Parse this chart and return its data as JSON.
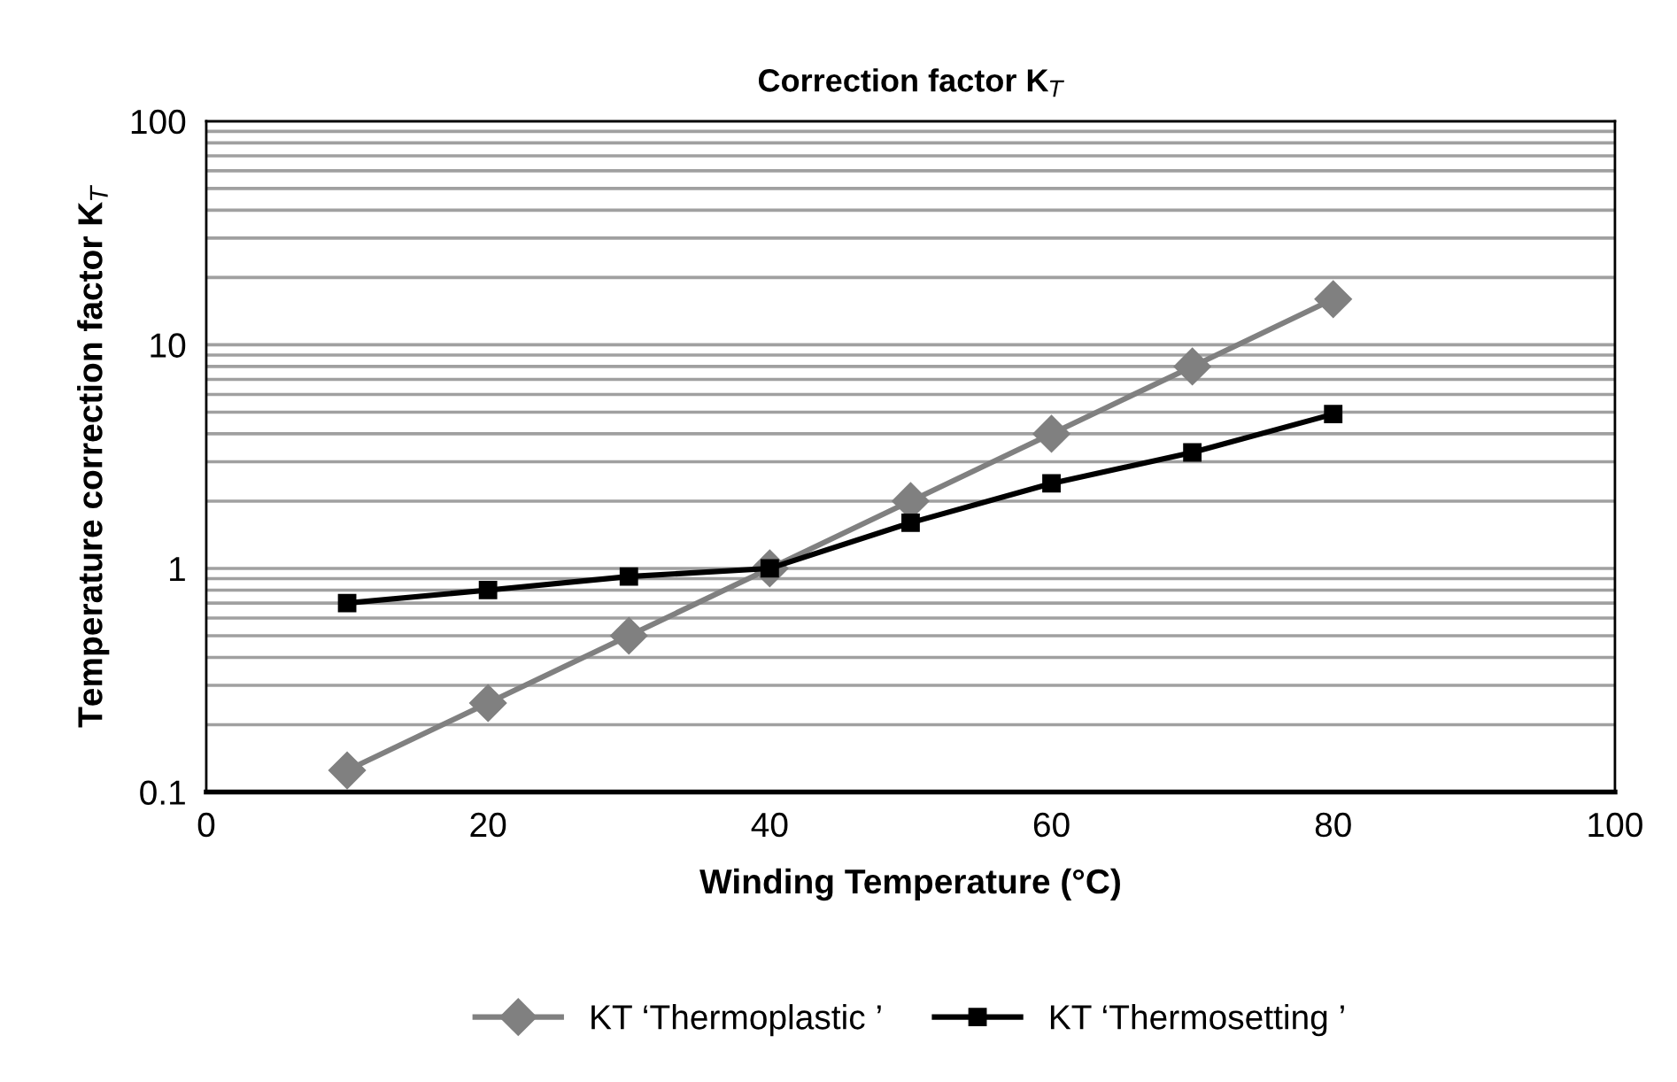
{
  "chart_data": {
    "type": "line",
    "title": "Correction factor K$_{T}$",
    "xlabel": "Winding Temperature (°C)",
    "ylabel": "Temperature correction factor K$_{T}$",
    "log": "y",
    "grid": "y",
    "legend": "bottom",
    "line_style": "solid",
    "xlim": [
      0,
      100
    ],
    "xticks": [
      0,
      20,
      40,
      60,
      80,
      100
    ],
    "ylim": [
      0.1,
      100
    ],
    "yticks": [
      0.1,
      {
        "value": 0.2,
        "label": null
      },
      {
        "value": 0.3,
        "label": null
      },
      {
        "value": 0.4,
        "label": null
      },
      {
        "value": 0.5,
        "label": null
      },
      {
        "value": 0.6,
        "label": null
      },
      {
        "value": 0.7,
        "label": null
      },
      {
        "value": 0.8,
        "label": null
      },
      {
        "value": 0.9,
        "label": null
      },
      1,
      {
        "value": 2,
        "label": null
      },
      {
        "value": 3,
        "label": null
      },
      {
        "value": 4,
        "label": null
      },
      {
        "value": 5,
        "label": null
      },
      {
        "value": 6,
        "label": null
      },
      {
        "value": 7,
        "label": null
      },
      {
        "value": 8,
        "label": null
      },
      {
        "value": 9,
        "label": null
      },
      10,
      {
        "value": 20,
        "label": null
      },
      {
        "value": 30,
        "label": null
      },
      {
        "value": 40,
        "label": null
      },
      {
        "value": 50,
        "label": null
      },
      {
        "value": 60,
        "label": null
      },
      {
        "value": 70,
        "label": null
      },
      {
        "value": 80,
        "label": null
      },
      {
        "value": 90,
        "label": null
      },
      100
    ],
    "x": [
      10,
      20,
      30,
      40,
      50,
      60,
      70,
      80
    ],
    "series": [
      {
        "name": "KT ‘Thermoplastic ’",
        "color": "#808080",
        "marker": "diamond",
        "values": [
          0.125,
          0.25,
          0.5,
          1,
          2,
          4,
          8,
          16
        ]
      },
      {
        "name": "KT ‘Thermosetting ’",
        "color": "#000000",
        "marker": "square",
        "values": [
          0.7,
          0.8,
          0.92,
          1.0,
          1.6,
          2.4,
          3.3,
          4.9
        ]
      }
    ]
  }
}
